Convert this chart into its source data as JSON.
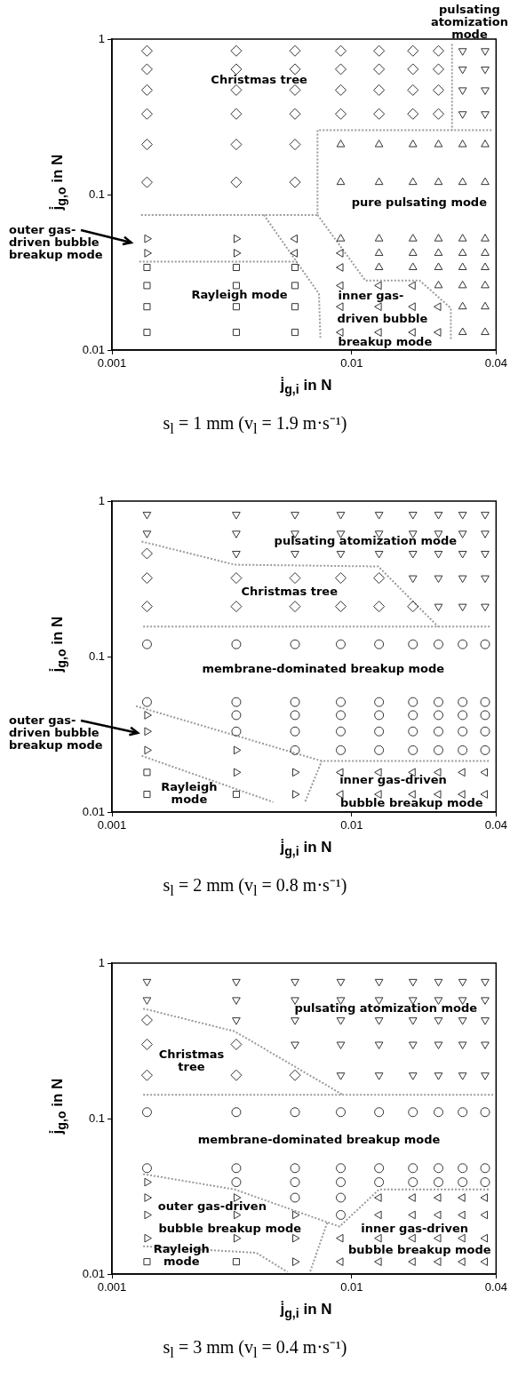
{
  "chart_data": [
    {
      "type": "scatter",
      "title": "s$_{l}$ = 1 mm (v$_{l}$ = 1.9 m·s⁻¹)",
      "xlabel": "j̇$_{g,i}$ in N",
      "ylabel": "j̇$_{g,o}$ in N",
      "log": "xy",
      "xlim": [
        0.001,
        0.04
      ],
      "ylim": [
        0.01,
        1
      ],
      "xticks": [
        0.001,
        0.01,
        0.04
      ],
      "yticks": [
        0.01,
        0.1,
        1
      ],
      "series": [
        {
          "marker": "diamond",
          "color": "#333333",
          "x": [
            0.0014,
            0.0033,
            0.0058,
            0.009,
            0.013,
            0.018,
            0.023,
            0.0014,
            0.0033,
            0.0058,
            0.009,
            0.013,
            0.018,
            0.023,
            0.0014,
            0.0033,
            0.0058,
            0.009,
            0.013,
            0.018,
            0.023,
            0.0014,
            0.0033,
            0.0058,
            0.009,
            0.013,
            0.018,
            0.023,
            0.0014,
            0.0033,
            0.0058,
            0.0014,
            0.0033,
            0.0058
          ],
          "values": [
            0.84,
            0.84,
            0.84,
            0.84,
            0.84,
            0.84,
            0.84,
            0.64,
            0.64,
            0.64,
            0.64,
            0.64,
            0.64,
            0.64,
            0.47,
            0.47,
            0.47,
            0.47,
            0.47,
            0.47,
            0.47,
            0.33,
            0.33,
            0.33,
            0.33,
            0.33,
            0.33,
            0.33,
            0.21,
            0.21,
            0.21,
            0.12,
            0.12,
            0.12
          ]
        },
        {
          "marker": "triangle-down",
          "color": "#333333",
          "x": [
            0.029,
            0.036,
            0.029,
            0.036,
            0.029,
            0.036,
            0.029,
            0.036
          ],
          "values": [
            0.84,
            0.84,
            0.64,
            0.64,
            0.47,
            0.47,
            0.33,
            0.33
          ]
        },
        {
          "marker": "triangle",
          "color": "#333333",
          "x": [
            0.009,
            0.013,
            0.018,
            0.023,
            0.029,
            0.036,
            0.009,
            0.013,
            0.018,
            0.023,
            0.029,
            0.036,
            0.009,
            0.013,
            0.018,
            0.023,
            0.029,
            0.036,
            0.013,
            0.018,
            0.023,
            0.029,
            0.036,
            0.013,
            0.018,
            0.023,
            0.029,
            0.036,
            0.023,
            0.029,
            0.036,
            0.029,
            0.036,
            0.029,
            0.036
          ],
          "values": [
            0.21,
            0.21,
            0.21,
            0.21,
            0.21,
            0.21,
            0.12,
            0.12,
            0.12,
            0.12,
            0.12,
            0.12,
            0.052,
            0.052,
            0.052,
            0.052,
            0.052,
            0.052,
            0.042,
            0.042,
            0.042,
            0.042,
            0.042,
            0.034,
            0.034,
            0.034,
            0.034,
            0.034,
            0.026,
            0.026,
            0.026,
            0.019,
            0.019,
            0.013,
            0.013
          ]
        },
        {
          "marker": "triangle-right",
          "color": "#333333",
          "x": [
            0.0014,
            0.0033,
            0.0014,
            0.0033
          ],
          "values": [
            0.052,
            0.052,
            0.042,
            0.042
          ]
        },
        {
          "marker": "triangle-left",
          "color": "#333333",
          "x": [
            0.0058,
            0.0058,
            0.009,
            0.009,
            0.009,
            0.013,
            0.018,
            0.009,
            0.013,
            0.018,
            0.023,
            0.009,
            0.013,
            0.018,
            0.023
          ],
          "values": [
            0.052,
            0.042,
            0.042,
            0.034,
            0.026,
            0.026,
            0.026,
            0.019,
            0.019,
            0.019,
            0.019,
            0.013,
            0.013,
            0.013,
            0.013
          ]
        },
        {
          "marker": "square",
          "color": "#333333",
          "x": [
            0.0014,
            0.0033,
            0.0058,
            0.0014,
            0.0033,
            0.0058,
            0.0014,
            0.0033,
            0.0058,
            0.0014,
            0.0033,
            0.0058
          ],
          "values": [
            0.034,
            0.034,
            0.034,
            0.026,
            0.026,
            0.026,
            0.019,
            0.019,
            0.019,
            0.013,
            0.013,
            0.013
          ]
        },
        {
          "type": "line",
          "marker": "none",
          "line_style": "dotted",
          "color": "#9a9a9a",
          "x": [
            0.0262,
            0.0262
          ],
          "values": [
            0.93,
            0.26
          ]
        },
        {
          "type": "line",
          "marker": "none",
          "line_style": "dotted",
          "color": "#9a9a9a",
          "x": [
            0.0383,
            0.0072,
            0.0072,
            0.0013
          ],
          "values": [
            0.26,
            0.26,
            0.074,
            0.074
          ]
        },
        {
          "type": "line",
          "marker": "none",
          "line_style": "dotted",
          "color": "#9a9a9a",
          "x": [
            0.0043,
            0.0073,
            0.0074
          ],
          "values": [
            0.074,
            0.023,
            0.012
          ]
        },
        {
          "type": "line",
          "marker": "none",
          "line_style": "dotted",
          "color": "#9a9a9a",
          "x": [
            0.0013,
            0.0059
          ],
          "values": [
            0.037,
            0.037
          ]
        },
        {
          "type": "line",
          "marker": "none",
          "line_style": "dotted",
          "color": "#9a9a9a",
          "x": [
            0.0072,
            0.0114,
            0.0192,
            0.0259,
            0.0259
          ],
          "values": [
            0.074,
            0.028,
            0.028,
            0.0186,
            0.0115
          ]
        }
      ],
      "annotations": [
        "pulsating\natomization\nmode",
        "Christmas tree",
        "pure pulsating mode",
        "outer gas-\ndriven bubble\nbreakup mode",
        "Rayleigh mode",
        "inner gas-",
        "driven bubble",
        "breakup mode"
      ]
    },
    {
      "type": "scatter",
      "title": "s$_{l}$ = 2 mm (v$_{l}$ = 0.8 m·s⁻¹)",
      "xlabel": "j̇$_{g,i}$ in N",
      "ylabel": "j̇$_{g,o}$ in N",
      "log": "xy",
      "xlim": [
        0.001,
        0.04
      ],
      "ylim": [
        0.01,
        1
      ],
      "xticks": [
        0.001,
        0.01,
        0.04
      ],
      "yticks": [
        0.01,
        0.1,
        1
      ],
      "series": [
        {
          "marker": "triangle-down",
          "color": "#333333",
          "x": [
            0.0014,
            0.0033,
            0.0058,
            0.009,
            0.013,
            0.018,
            0.023,
            0.029,
            0.036,
            0.0014,
            0.0033,
            0.0058,
            0.009,
            0.013,
            0.018,
            0.023,
            0.029,
            0.036,
            0.0033,
            0.0058,
            0.009,
            0.013,
            0.018,
            0.023,
            0.029,
            0.036,
            0.018,
            0.023,
            0.029,
            0.036,
            0.023,
            0.029,
            0.036
          ],
          "values": [
            0.82,
            0.82,
            0.82,
            0.82,
            0.82,
            0.82,
            0.82,
            0.82,
            0.82,
            0.62,
            0.62,
            0.62,
            0.62,
            0.62,
            0.62,
            0.62,
            0.62,
            0.62,
            0.46,
            0.46,
            0.46,
            0.46,
            0.46,
            0.46,
            0.46,
            0.46,
            0.32,
            0.32,
            0.32,
            0.32,
            0.21,
            0.21,
            0.21
          ]
        },
        {
          "marker": "diamond",
          "color": "#333333",
          "x": [
            0.0014,
            0.0014,
            0.0033,
            0.0058,
            0.009,
            0.013,
            0.0014,
            0.0033,
            0.0058,
            0.009,
            0.013,
            0.018
          ],
          "values": [
            0.46,
            0.32,
            0.32,
            0.32,
            0.32,
            0.32,
            0.21,
            0.21,
            0.21,
            0.21,
            0.21,
            0.21
          ]
        },
        {
          "marker": "circle",
          "color": "#333333",
          "x": [
            0.0014,
            0.0033,
            0.0058,
            0.009,
            0.013,
            0.018,
            0.023,
            0.029,
            0.036,
            0.0014,
            0.0033,
            0.0058,
            0.009,
            0.013,
            0.018,
            0.023,
            0.029,
            0.036,
            0.0033,
            0.0058,
            0.009,
            0.013,
            0.018,
            0.023,
            0.029,
            0.036,
            0.0033,
            0.0058,
            0.009,
            0.013,
            0.018,
            0.023,
            0.029,
            0.036,
            0.0058,
            0.009,
            0.013,
            0.018,
            0.023,
            0.029,
            0.036
          ],
          "values": [
            0.12,
            0.12,
            0.12,
            0.12,
            0.12,
            0.12,
            0.12,
            0.12,
            0.12,
            0.051,
            0.051,
            0.051,
            0.051,
            0.051,
            0.051,
            0.051,
            0.051,
            0.051,
            0.042,
            0.042,
            0.042,
            0.042,
            0.042,
            0.042,
            0.042,
            0.042,
            0.033,
            0.033,
            0.033,
            0.033,
            0.033,
            0.033,
            0.033,
            0.033,
            0.025,
            0.025,
            0.025,
            0.025,
            0.025,
            0.025,
            0.025
          ]
        },
        {
          "marker": "triangle-right",
          "color": "#333333",
          "x": [
            0.0014,
            0.0014,
            0.0014,
            0.0033,
            0.0033,
            0.0058,
            0.0058
          ],
          "values": [
            0.042,
            0.033,
            0.025,
            0.025,
            0.018,
            0.018,
            0.013
          ]
        },
        {
          "marker": "square",
          "color": "#333333",
          "x": [
            0.0014,
            0.0014,
            0.0033
          ],
          "values": [
            0.018,
            0.013,
            0.013
          ]
        },
        {
          "marker": "triangle-left",
          "color": "#333333",
          "x": [
            0.009,
            0.013,
            0.018,
            0.023,
            0.029,
            0.036,
            0.009,
            0.013,
            0.018,
            0.023,
            0.029,
            0.036
          ],
          "values": [
            0.018,
            0.018,
            0.018,
            0.018,
            0.018,
            0.018,
            0.013,
            0.013,
            0.013,
            0.013,
            0.013,
            0.013
          ]
        },
        {
          "type": "line",
          "marker": "none",
          "line_style": "dotted",
          "color": "#9a9a9a",
          "x": [
            0.00133,
            0.00325,
            0.0129,
            0.0229
          ],
          "values": [
            0.55,
            0.39,
            0.38,
            0.156
          ]
        },
        {
          "type": "line",
          "marker": "none",
          "line_style": "dotted",
          "color": "#9a9a9a",
          "x": [
            0.00135,
            0.0377
          ],
          "values": [
            0.156,
            0.156
          ]
        },
        {
          "type": "line",
          "marker": "none",
          "line_style": "dotted",
          "color": "#9a9a9a",
          "x": [
            0.00126,
            0.0075,
            0.0377
          ],
          "values": [
            0.048,
            0.0213,
            0.0213
          ]
        },
        {
          "type": "line",
          "marker": "none",
          "line_style": "dotted",
          "color": "#9a9a9a",
          "x": [
            0.00133,
            0.0047
          ],
          "values": [
            0.023,
            0.0116
          ]
        },
        {
          "type": "line",
          "marker": "none",
          "line_style": "dotted",
          "color": "#9a9a9a",
          "x": [
            0.0064,
            0.0075
          ],
          "values": [
            0.0117,
            0.0213
          ]
        }
      ],
      "annotations": [
        "pulsating atomization mode",
        "Christmas tree",
        "membrane-dominated breakup mode",
        "outer gas-\ndriven bubble\nbreakup mode",
        "Rayleigh\nmode",
        "inner gas-driven",
        "bubble breakup mode"
      ]
    },
    {
      "type": "scatter",
      "title": "s$_{l}$ = 3 mm (v$_{l}$ = 0.4 m·s⁻¹)",
      "xlabel": "j̇$_{g,i}$ in N",
      "ylabel": "j̇$_{g,o}$ in N",
      "log": "xy",
      "xlim": [
        0.001,
        0.04
      ],
      "ylim": [
        0.01,
        1
      ],
      "xticks": [
        0.001,
        0.01,
        0.04
      ],
      "yticks": [
        0.01,
        0.1,
        1
      ],
      "series": [
        {
          "marker": "triangle-down",
          "color": "#333333",
          "x": [
            0.0014,
            0.0033,
            0.0058,
            0.009,
            0.013,
            0.018,
            0.023,
            0.029,
            0.036,
            0.0014,
            0.0033,
            0.0058,
            0.009,
            0.013,
            0.018,
            0.023,
            0.029,
            0.036,
            0.0033,
            0.0058,
            0.009,
            0.013,
            0.018,
            0.023,
            0.029,
            0.036,
            0.0058,
            0.009,
            0.013,
            0.018,
            0.023,
            0.029,
            0.036,
            0.009,
            0.013,
            0.018,
            0.023,
            0.029,
            0.036
          ],
          "values": [
            0.76,
            0.76,
            0.76,
            0.76,
            0.76,
            0.76,
            0.76,
            0.76,
            0.76,
            0.58,
            0.58,
            0.58,
            0.58,
            0.58,
            0.58,
            0.58,
            0.58,
            0.58,
            0.43,
            0.43,
            0.43,
            0.43,
            0.43,
            0.43,
            0.43,
            0.43,
            0.3,
            0.3,
            0.3,
            0.3,
            0.3,
            0.3,
            0.3,
            0.19,
            0.19,
            0.19,
            0.19,
            0.19,
            0.19
          ]
        },
        {
          "marker": "diamond",
          "color": "#333333",
          "x": [
            0.0014,
            0.0014,
            0.0033,
            0.0014,
            0.0033,
            0.0058
          ],
          "values": [
            0.43,
            0.3,
            0.3,
            0.19,
            0.19,
            0.19
          ]
        },
        {
          "marker": "circle",
          "color": "#333333",
          "x": [
            0.0014,
            0.0033,
            0.0058,
            0.009,
            0.013,
            0.018,
            0.023,
            0.029,
            0.036,
            0.0014,
            0.0033,
            0.0058,
            0.009,
            0.013,
            0.018,
            0.023,
            0.029,
            0.036,
            0.0033,
            0.0058,
            0.009,
            0.013,
            0.018,
            0.023,
            0.029,
            0.036,
            0.0058,
            0.009,
            0.009
          ],
          "values": [
            0.11,
            0.11,
            0.11,
            0.11,
            0.11,
            0.11,
            0.11,
            0.11,
            0.11,
            0.048,
            0.048,
            0.048,
            0.048,
            0.048,
            0.048,
            0.048,
            0.048,
            0.048,
            0.039,
            0.039,
            0.039,
            0.039,
            0.039,
            0.039,
            0.039,
            0.039,
            0.031,
            0.031,
            0.024
          ]
        },
        {
          "marker": "triangle-right",
          "color": "#333333",
          "x": [
            0.0014,
            0.0014,
            0.0033,
            0.0014,
            0.0033,
            0.0058,
            0.0014,
            0.0033,
            0.0058,
            0.0058
          ],
          "values": [
            0.039,
            0.031,
            0.031,
            0.024,
            0.024,
            0.024,
            0.017,
            0.017,
            0.017,
            0.012
          ]
        },
        {
          "marker": "triangle-left",
          "color": "#333333",
          "x": [
            0.013,
            0.018,
            0.023,
            0.029,
            0.036,
            0.013,
            0.018,
            0.023,
            0.029,
            0.036,
            0.009,
            0.013,
            0.018,
            0.023,
            0.029,
            0.036,
            0.009,
            0.013,
            0.018,
            0.023,
            0.029,
            0.036
          ],
          "values": [
            0.031,
            0.031,
            0.031,
            0.031,
            0.031,
            0.024,
            0.024,
            0.024,
            0.024,
            0.024,
            0.017,
            0.017,
            0.017,
            0.017,
            0.017,
            0.017,
            0.012,
            0.012,
            0.012,
            0.012,
            0.012,
            0.012
          ]
        },
        {
          "marker": "square",
          "color": "#333333",
          "x": [
            0.0014,
            0.0033
          ],
          "values": [
            0.012,
            0.012
          ]
        },
        {
          "type": "line",
          "marker": "none",
          "line_style": "dotted",
          "color": "#9a9a9a",
          "x": [
            0.00135,
            0.00325,
            0.0092
          ],
          "values": [
            0.51,
            0.364,
            0.142
          ]
        },
        {
          "type": "line",
          "marker": "none",
          "line_style": "dotted",
          "color": "#9a9a9a",
          "x": [
            0.00135,
            0.0389
          ],
          "values": [
            0.142,
            0.142
          ]
        },
        {
          "type": "line",
          "marker": "none",
          "line_style": "dotted",
          "color": "#9a9a9a",
          "x": [
            0.00135,
            0.00325,
            0.0089,
            0.013,
            0.0377
          ],
          "values": [
            0.044,
            0.035,
            0.0202,
            0.035,
            0.035
          ]
        },
        {
          "type": "line",
          "marker": "none",
          "line_style": "dotted",
          "color": "#9a9a9a",
          "x": [
            0.00135,
            0.004,
            0.0054
          ],
          "values": [
            0.0151,
            0.0137,
            0.0103
          ]
        },
        {
          "type": "line",
          "marker": "none",
          "line_style": "dotted",
          "color": "#9a9a9a",
          "x": [
            0.0079,
            0.0067
          ],
          "values": [
            0.0214,
            0.0103
          ]
        }
      ],
      "annotations": [
        "pulsating atomization mode",
        "Christmas\ntree",
        "membrane-dominated breakup mode",
        "outer gas-driven",
        "bubble breakup mode",
        "inner gas-driven",
        "bubble breakup mode",
        "Rayleigh\nmode"
      ]
    }
  ]
}
